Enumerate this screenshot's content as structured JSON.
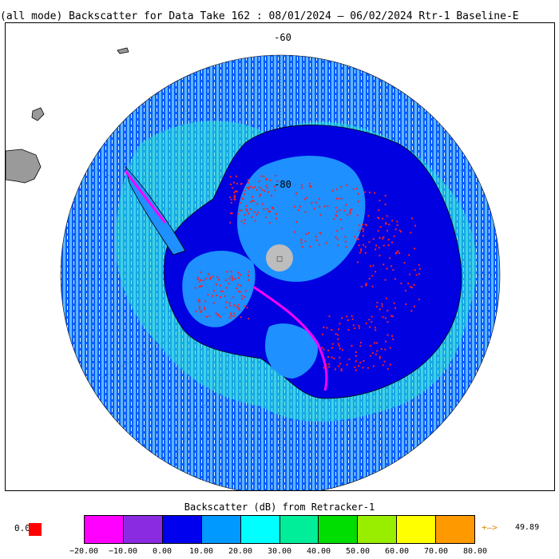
{
  "title": "(all mode) Backscatter for Data Take 162 : 08/01/2024 – 06/02/2024 Rtr-1 Baseline-E",
  "map": {
    "latitude_labels": [
      "-60",
      "-80"
    ],
    "pole_label": "□",
    "colors": {
      "ocean": "#0a5cff",
      "ocean_light": "#44b8ff",
      "coast_ice": "#22e6d2",
      "land_outside": "#9a9a9a",
      "ice_sheet_dark": "#0000e0",
      "ice_sheet_light": "#1e90ff",
      "high_backscatter": "#ff2020",
      "margin": "#ff00ff",
      "pole_hole": "#bdbdbd"
    }
  },
  "colorbar": {
    "title": "Backscatter (dB) from Retracker-1",
    "colors": [
      "#ff00ff",
      "#8a2be2",
      "#0000ee",
      "#0099ff",
      "#00ffff",
      "#00ee99",
      "#00dd00",
      "#99ee00",
      "#ffff00",
      "#ff9900"
    ],
    "ticks": [
      "−20.00",
      "−10.00",
      "0.00",
      "10.00",
      "20.00",
      "30.00",
      "40.00",
      "50.00",
      "60.00",
      "70.00",
      "80.00"
    ],
    "below": {
      "label": "0.0",
      "color": "#ff0000"
    },
    "above": {
      "arrow": "+–>",
      "value": "49.89"
    }
  }
}
